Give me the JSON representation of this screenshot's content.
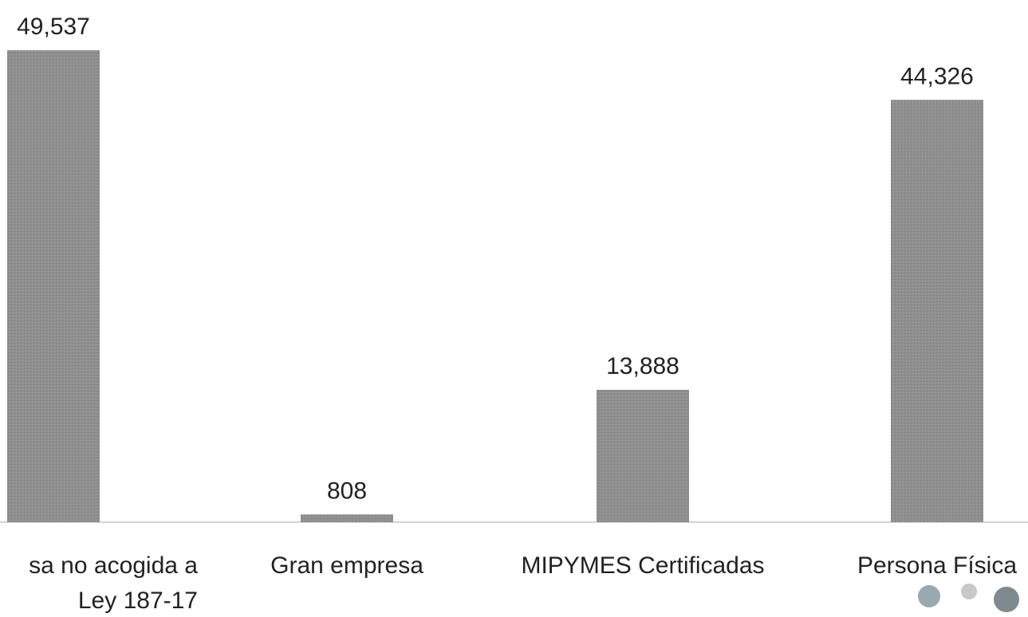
{
  "chart_data": {
    "type": "bar",
    "categories": [
      "sa no acogida a Ley 187-17",
      "Gran empresa",
      "MIPYMES Certificadas",
      "Persona Física"
    ],
    "values": [
      49537,
      808,
      13888,
      44326
    ],
    "value_labels": [
      "49,537",
      "808",
      "13,888",
      "44,326"
    ],
    "color": "#8f8f8f"
  }
}
